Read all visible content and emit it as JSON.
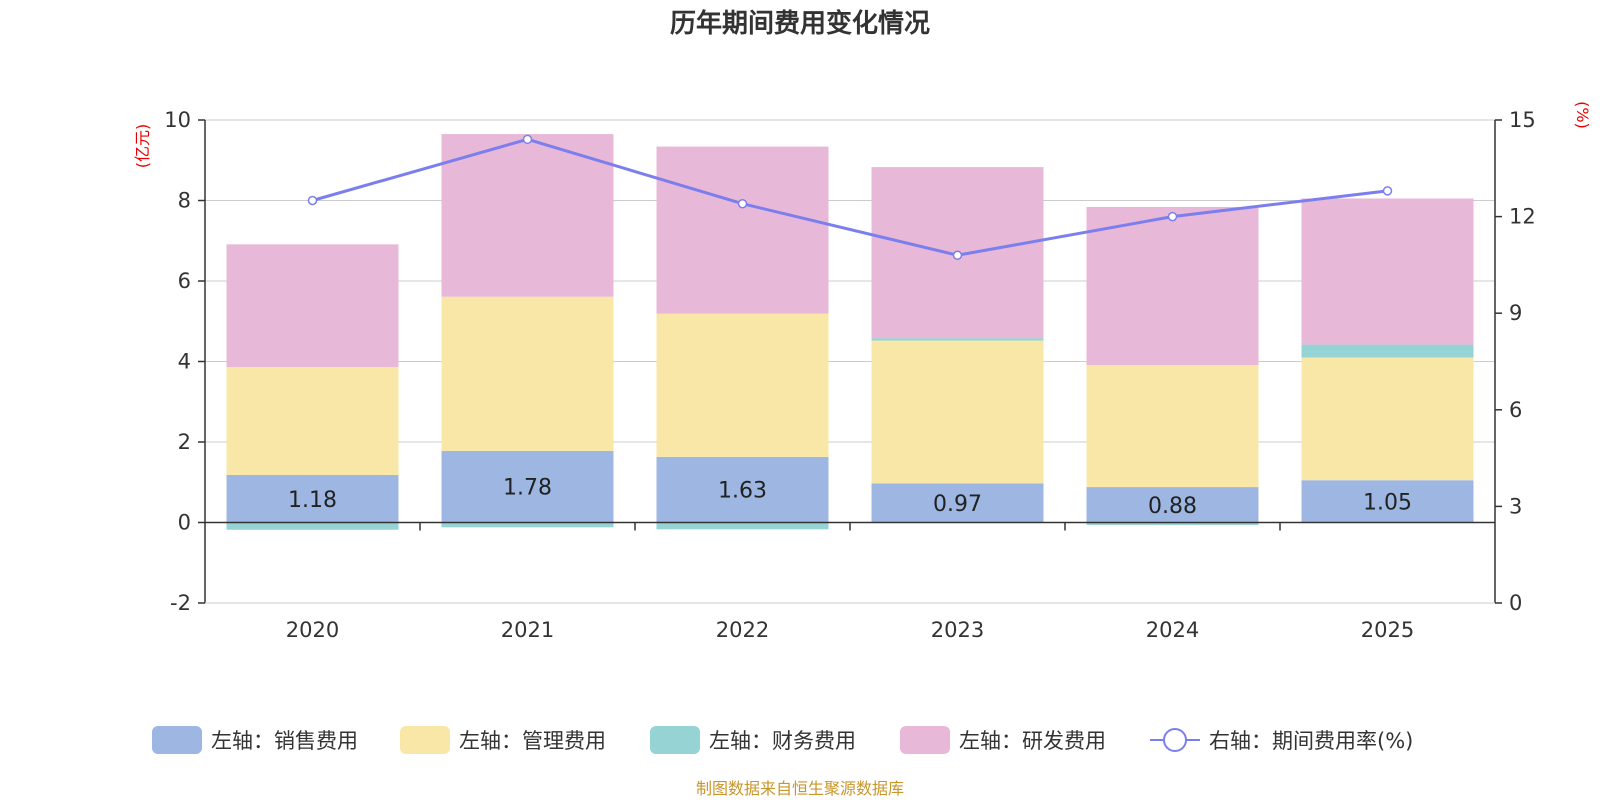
{
  "chart_data": {
    "type": "bar",
    "title": "历年期间费用变化情况",
    "categories": [
      "2020",
      "2021",
      "2022",
      "2023",
      "2024",
      "2025"
    ],
    "left_axis": {
      "unit_label": "(亿元)",
      "range": [
        -2,
        10
      ],
      "ticks": [
        "-2",
        "0",
        "2",
        "4",
        "6",
        "8",
        "10"
      ]
    },
    "right_axis": {
      "unit_label": "(%)",
      "range": [
        0,
        15
      ],
      "ticks": [
        "0",
        "3",
        "6",
        "9",
        "12",
        "15"
      ]
    },
    "series": [
      {
        "name": "左轴：销售费用",
        "axis": "left",
        "type": "bar",
        "color": "#9db7e2",
        "values": [
          1.18,
          1.78,
          1.63,
          0.97,
          0.88,
          1.05
        ],
        "labels": [
          "1.18",
          "1.78",
          "1.63",
          "0.97",
          "0.88",
          "1.05"
        ]
      },
      {
        "name": "左轴：管理费用",
        "axis": "left",
        "type": "bar",
        "color": "#f8e7a7",
        "values": [
          2.68,
          3.83,
          3.56,
          3.55,
          3.03,
          3.05
        ]
      },
      {
        "name": "左轴：财务费用",
        "axis": "left",
        "type": "bar",
        "color": "#96d3d4",
        "values": [
          -0.18,
          -0.12,
          -0.17,
          0.06,
          -0.06,
          0.32
        ]
      },
      {
        "name": "左轴：研发费用",
        "axis": "left",
        "type": "bar",
        "color": "#e8b8d8",
        "values": [
          3.05,
          4.04,
          4.15,
          4.25,
          3.93,
          3.63
        ]
      },
      {
        "name": "右轴：期间费用率(%)",
        "axis": "right",
        "type": "line",
        "color": "#7b7fed",
        "values": [
          12.5,
          14.4,
          12.4,
          10.8,
          12.0,
          12.8
        ]
      }
    ],
    "grid": true,
    "legend_position": "bottom",
    "source_note": "制图数据来自恒生聚源数据库"
  }
}
